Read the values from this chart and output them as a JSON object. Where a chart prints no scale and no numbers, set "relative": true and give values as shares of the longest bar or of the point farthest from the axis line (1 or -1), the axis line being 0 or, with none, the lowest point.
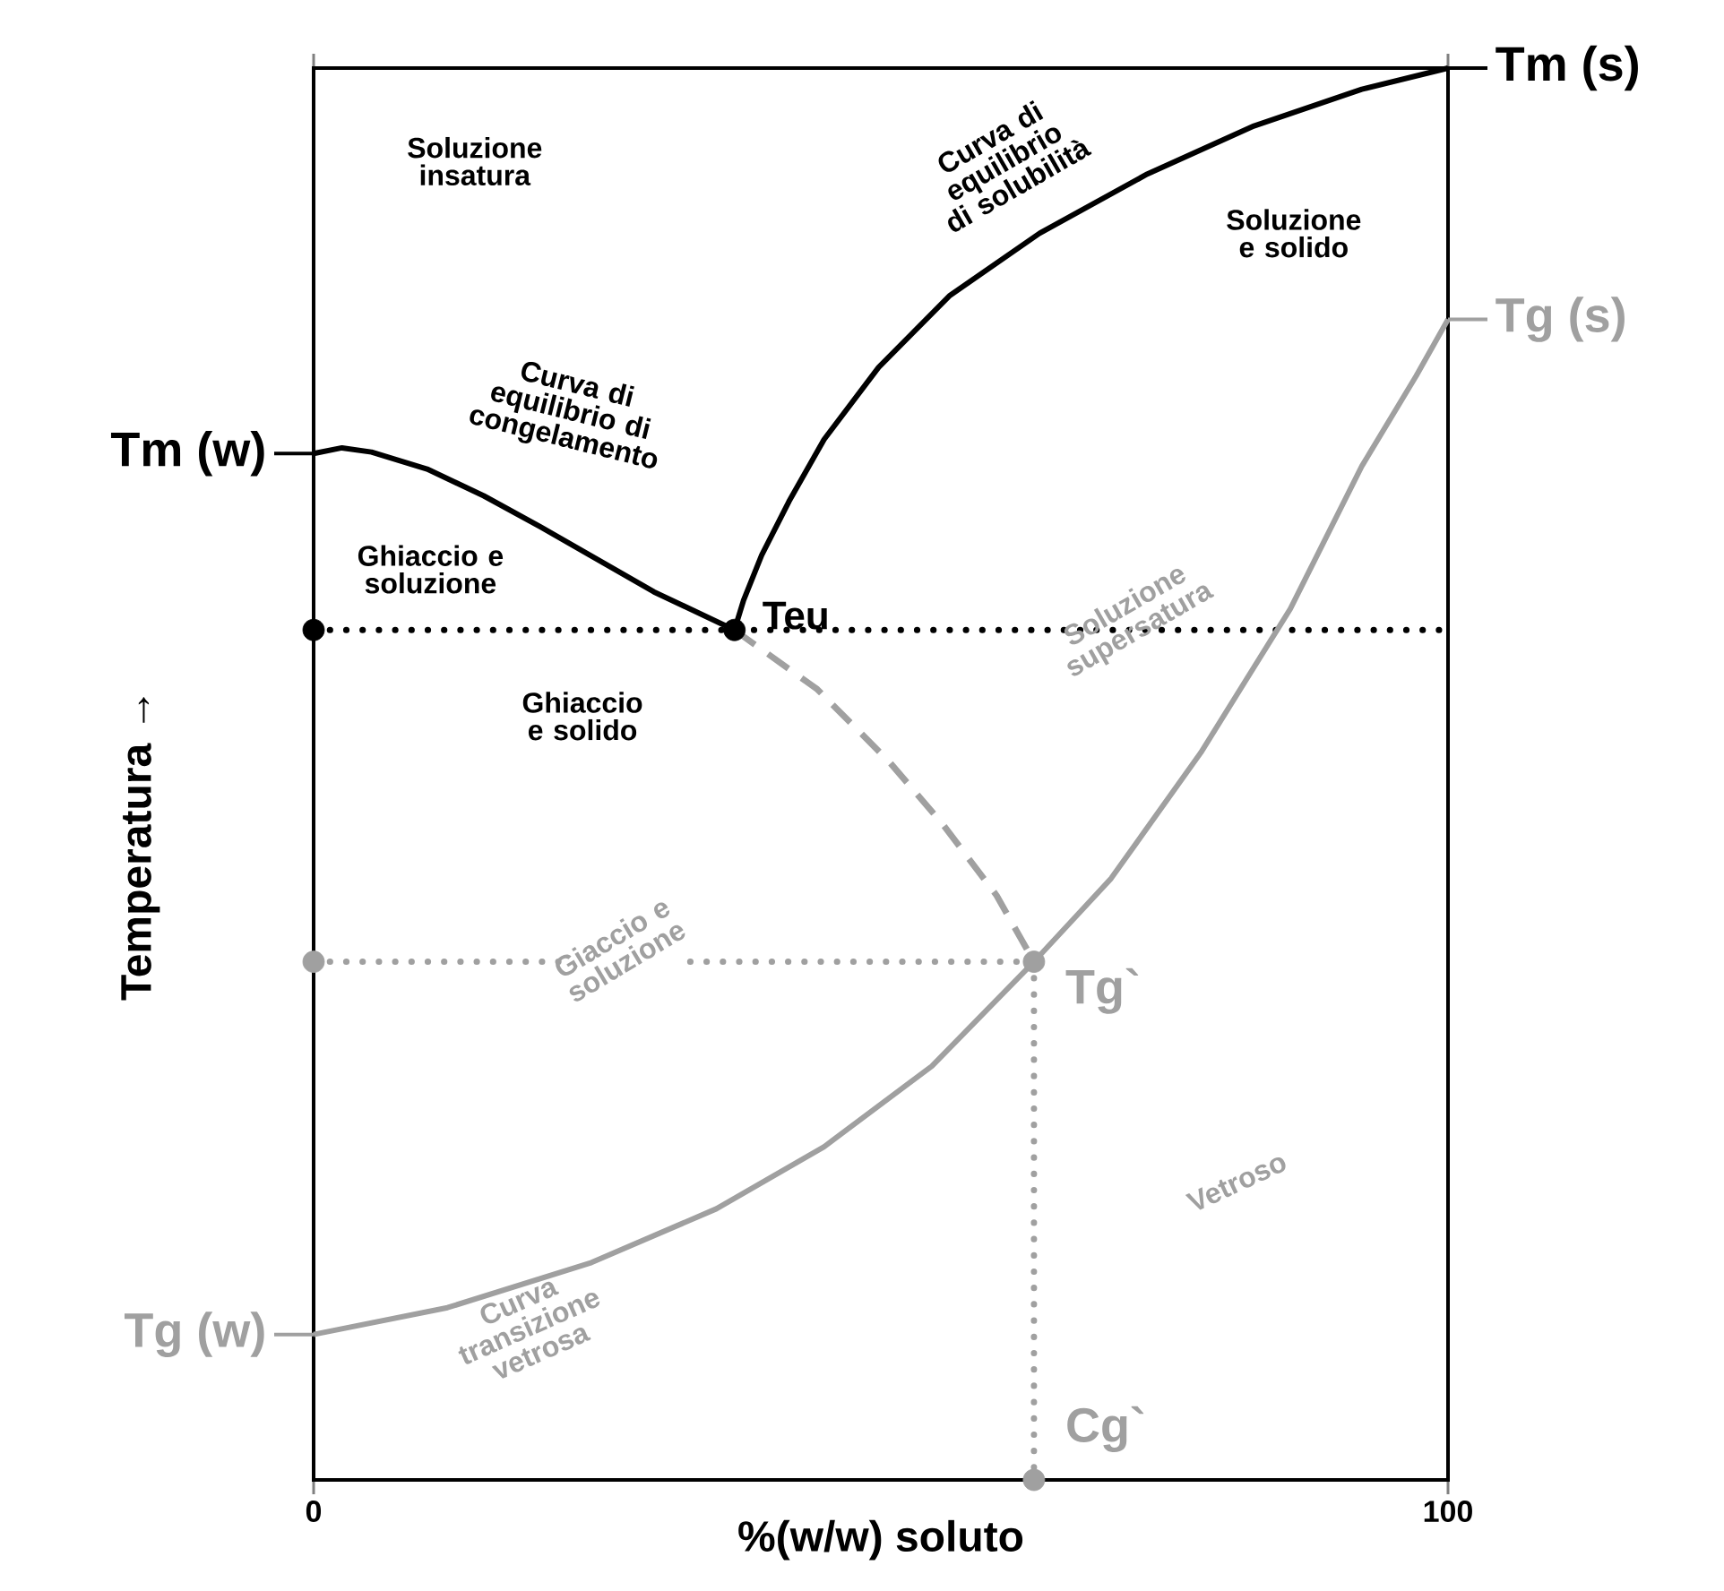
{
  "chart_data": {
    "type": "line",
    "relative": true,
    "xlabel": "%(w/w) soluto",
    "ylabel": "Temperatura →",
    "xlim": [
      0,
      100
    ],
    "xticks": [
      0,
      100
    ],
    "series": [
      {
        "color": "#000000",
        "line_style": "solid",
        "x": [
          0,
          2.5,
          5.1,
          10,
          15,
          20,
          25,
          30,
          37.1
        ],
        "values": [
          0.727,
          0.731,
          0.728,
          0.716,
          0.697,
          0.675,
          0.652,
          0.629,
          0.602
        ]
      },
      {
        "color": "#000000",
        "line_style": "solid",
        "x": [
          37.1,
          37.9,
          39.5,
          41.9,
          45.0,
          49.8,
          56.1,
          64.0,
          73.5,
          82.9,
          92.4,
          100
        ],
        "values": [
          0.602,
          0.623,
          0.655,
          0.693,
          0.737,
          0.788,
          0.839,
          0.883,
          0.925,
          0.959,
          0.985,
          1
        ]
      },
      {
        "color": "#a0a0a0",
        "line_style": "dashed",
        "x": [
          37.1,
          44.4,
          50.7,
          55.5,
          60.2,
          63.5
        ],
        "values": [
          0.602,
          0.56,
          0.509,
          0.464,
          0.414,
          0.367
        ]
      },
      {
        "color": "#a0a0a0",
        "line_style": "solid",
        "x": [
          0,
          11.8,
          24.5,
          35.5,
          45.0,
          54.5,
          63.5,
          70.3,
          78.2,
          86.1,
          92.4,
          97.2,
          100
        ],
        "values": [
          0.103,
          0.122,
          0.154,
          0.192,
          0.236,
          0.293,
          0.367,
          0.426,
          0.515,
          0.617,
          0.718,
          0.782,
          0.822
        ]
      },
      {
        "color": "#a0a0a0",
        "line_style": "dotted",
        "x": [
          0,
          22.9
        ],
        "values": [
          0.367,
          0.367
        ]
      },
      {
        "color": "#a0a0a0",
        "line_style": "dotted",
        "x": [
          33.2,
          63.5
        ],
        "values": [
          0.367,
          0.367
        ]
      },
      {
        "color": "#a0a0a0",
        "line_style": "dotted",
        "x": [
          63.5,
          63.5
        ],
        "values": [
          0.367,
          0
        ]
      },
      {
        "type": "scatter",
        "marker": "circle",
        "color": "#000000",
        "x": [
          0,
          37.1
        ],
        "values": [
          0.602,
          0.602
        ]
      },
      {
        "type": "scatter",
        "marker": "circle",
        "color": "#a0a0a0",
        "x": [
          0,
          63.5,
          63.5
        ],
        "values": [
          0.367,
          0.367,
          0
        ]
      }
    ],
    "ref_lines": [
      {
        "axis": "y",
        "value": 0.602,
        "color": "#000000",
        "line_style": "dotted"
      }
    ],
    "annotations": [
      "Soluzione insatura",
      "Curva di equilibrio di congelamento",
      "Curva di equilibrio di solubilità",
      "Soluzione e solido",
      "Ghiaccio e soluzione",
      {
        "text": "Teu",
        "x": 37.1,
        "y": 0.602
      },
      "Ghiaccio e solido",
      "Soluzione supersatura",
      "Giaccio e soluzione",
      {
        "text": "Tg`",
        "x": 63.5,
        "y": 0.367
      },
      "Vetroso",
      "Curva transizione vetrosa",
      {
        "text": "Cg`",
        "x": 63.5,
        "y": 0
      },
      {
        "text": "Tm (w)",
        "x": 0,
        "y": 0.727
      },
      {
        "text": "Tg (w)",
        "x": 0,
        "y": 0.103
      },
      {
        "text": "Tm (s)",
        "x": 100,
        "y": 1
      },
      {
        "text": "Tg (s)",
        "x": 100,
        "y": 0.822
      }
    ]
  }
}
